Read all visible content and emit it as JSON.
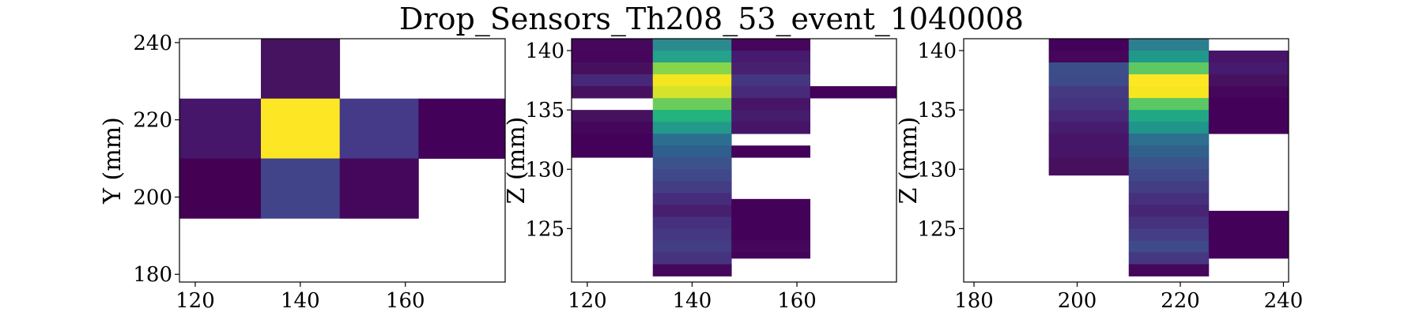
{
  "title": "Drop_Sensors_Th208_53_event_1040008",
  "chart_data": [
    {
      "type": "heatmap",
      "xlabel": "",
      "ylabel": "Y (mm)",
      "xlim": [
        117,
        179
      ],
      "ylim": [
        178,
        241
      ],
      "xticks": [
        120,
        140,
        160
      ],
      "yticks": [
        180,
        200,
        220,
        240
      ],
      "cells": [
        {
          "x0": 132.5,
          "x1": 147.5,
          "y0": 225.5,
          "y1": 241,
          "color": "#45135f"
        },
        {
          "x0": 117,
          "x1": 132.5,
          "y0": 210,
          "y1": 225.5,
          "color": "#45166a"
        },
        {
          "x0": 132.5,
          "x1": 147.5,
          "y0": 210,
          "y1": 225.5,
          "color": "#fde725"
        },
        {
          "x0": 147.5,
          "x1": 162.5,
          "y0": 210,
          "y1": 225.5,
          "color": "#453a88"
        },
        {
          "x0": 162.5,
          "x1": 179,
          "y0": 210,
          "y1": 225.5,
          "color": "#44015a"
        },
        {
          "x0": 117,
          "x1": 132.5,
          "y0": 194.5,
          "y1": 210,
          "color": "#440154"
        },
        {
          "x0": 132.5,
          "x1": 147.5,
          "y0": 194.5,
          "y1": 210,
          "color": "#414489"
        },
        {
          "x0": 147.5,
          "x1": 162.5,
          "y0": 194.5,
          "y1": 210,
          "color": "#45075b"
        }
      ]
    },
    {
      "type": "heatmap",
      "xlabel": "",
      "ylabel": "Z (mm)",
      "xlim": [
        117,
        179
      ],
      "ylim": [
        120.5,
        141
      ],
      "xticks": [
        120,
        140,
        160
      ],
      "yticks": [
        125,
        130,
        135,
        140
      ],
      "cells": [
        {
          "x0": 117,
          "x1": 132.5,
          "y0": 140,
          "y1": 141,
          "color": "#46085c"
        },
        {
          "x0": 132.5,
          "x1": 147.5,
          "y0": 140,
          "y1": 141,
          "color": "#2c8a8e"
        },
        {
          "x0": 147.5,
          "x1": 162.5,
          "y0": 140,
          "y1": 141,
          "color": "#45065b"
        },
        {
          "x0": 117,
          "x1": 132.5,
          "y0": 139,
          "y1": 140,
          "color": "#45065b"
        },
        {
          "x0": 132.5,
          "x1": 147.5,
          "y0": 139,
          "y1": 140,
          "color": "#25a28a"
        },
        {
          "x0": 147.5,
          "x1": 162.5,
          "y0": 139,
          "y1": 140,
          "color": "#461a6e"
        },
        {
          "x0": 117,
          "x1": 132.5,
          "y0": 138,
          "y1": 139,
          "color": "#46105f"
        },
        {
          "x0": 132.5,
          "x1": 147.5,
          "y0": 138,
          "y1": 139,
          "color": "#87d549"
        },
        {
          "x0": 147.5,
          "x1": 162.5,
          "y0": 138,
          "y1": 139,
          "color": "#47206f"
        },
        {
          "x0": 117,
          "x1": 132.5,
          "y0": 137,
          "y1": 138,
          "color": "#472878"
        },
        {
          "x0": 132.5,
          "x1": 147.5,
          "y0": 137,
          "y1": 138,
          "color": "#f4e61e"
        },
        {
          "x0": 147.5,
          "x1": 162.5,
          "y0": 137,
          "y1": 138,
          "color": "#453681"
        },
        {
          "x0": 117,
          "x1": 132.5,
          "y0": 136,
          "y1": 137,
          "color": "#46125f"
        },
        {
          "x0": 132.5,
          "x1": 147.5,
          "y0": 136,
          "y1": 137,
          "color": "#d6e32b"
        },
        {
          "x0": 147.5,
          "x1": 162.5,
          "y0": 136,
          "y1": 137,
          "color": "#472a7a"
        },
        {
          "x0": 162.5,
          "x1": 179,
          "y0": 136,
          "y1": 137,
          "color": "#44015a"
        },
        {
          "x0": 132.5,
          "x1": 147.5,
          "y0": 135,
          "y1": 136,
          "color": "#6acd5b"
        },
        {
          "x0": 147.5,
          "x1": 162.5,
          "y0": 135,
          "y1": 136,
          "color": "#461567"
        },
        {
          "x0": 117,
          "x1": 132.5,
          "y0": 134,
          "y1": 135,
          "color": "#46115f"
        },
        {
          "x0": 132.5,
          "x1": 147.5,
          "y0": 134,
          "y1": 135,
          "color": "#22b37e"
        },
        {
          "x0": 147.5,
          "x1": 162.5,
          "y0": 134,
          "y1": 135,
          "color": "#461c6f"
        },
        {
          "x0": 117,
          "x1": 132.5,
          "y0": 133,
          "y1": 134,
          "color": "#45075c"
        },
        {
          "x0": 132.5,
          "x1": 147.5,
          "y0": 133,
          "y1": 134,
          "color": "#239a89"
        },
        {
          "x0": 147.5,
          "x1": 162.5,
          "y0": 133,
          "y1": 134,
          "color": "#461567"
        },
        {
          "x0": 117,
          "x1": 132.5,
          "y0": 132,
          "y1": 133,
          "color": "#44015a"
        },
        {
          "x0": 132.5,
          "x1": 147.5,
          "y0": 132,
          "y1": 133,
          "color": "#2c6e8f"
        },
        {
          "x0": 117,
          "x1": 132.5,
          "y0": 131,
          "y1": 132,
          "color": "#44015a"
        },
        {
          "x0": 132.5,
          "x1": 147.5,
          "y0": 131,
          "y1": 132,
          "color": "#2e5f8e"
        },
        {
          "x0": 147.5,
          "x1": 162.5,
          "y0": 131,
          "y1": 132,
          "color": "#44015a"
        },
        {
          "x0": 132.5,
          "x1": 147.5,
          "y0": 130,
          "y1": 131,
          "color": "#3b528b"
        },
        {
          "x0": 132.5,
          "x1": 147.5,
          "y0": 129,
          "y1": 130,
          "color": "#3f4889"
        },
        {
          "x0": 132.5,
          "x1": 147.5,
          "y0": 128,
          "y1": 129,
          "color": "#433d84"
        },
        {
          "x0": 132.5,
          "x1": 147.5,
          "y0": 127,
          "y1": 128,
          "color": "#462d7c"
        },
        {
          "x0": 132.5,
          "x1": 147.5,
          "y0": 126,
          "y1": 127,
          "color": "#471f6f"
        },
        {
          "x0": 147.5,
          "x1": 162.5,
          "y0": 126,
          "y1": 127.5,
          "color": "#44015a"
        },
        {
          "x0": 132.5,
          "x1": 147.5,
          "y0": 125,
          "y1": 126,
          "color": "#46307e"
        },
        {
          "x0": 147.5,
          "x1": 162.5,
          "y0": 125,
          "y1": 126,
          "color": "#44015a"
        },
        {
          "x0": 132.5,
          "x1": 147.5,
          "y0": 124,
          "y1": 125,
          "color": "#453781"
        },
        {
          "x0": 147.5,
          "x1": 162.5,
          "y0": 124,
          "y1": 125,
          "color": "#44015a"
        },
        {
          "x0": 132.5,
          "x1": 147.5,
          "y0": 123,
          "y1": 124,
          "color": "#433d84"
        },
        {
          "x0": 147.5,
          "x1": 162.5,
          "y0": 123,
          "y1": 124,
          "color": "#45075c"
        },
        {
          "x0": 132.5,
          "x1": 147.5,
          "y0": 122,
          "y1": 123,
          "color": "#46337f"
        },
        {
          "x0": 147.5,
          "x1": 162.5,
          "y0": 122.5,
          "y1": 123,
          "color": "#44015a"
        },
        {
          "x0": 132.5,
          "x1": 147.5,
          "y0": 121,
          "y1": 122,
          "color": "#45075c"
        }
      ]
    },
    {
      "type": "heatmap",
      "xlabel": "",
      "ylabel": "Z (mm)",
      "xlim": [
        178,
        241
      ],
      "ylim": [
        120.5,
        141
      ],
      "xticks": [
        180,
        200,
        220,
        240
      ],
      "yticks": [
        125,
        130,
        135,
        140
      ],
      "cells": [
        {
          "x0": 194.5,
          "x1": 210,
          "y0": 140,
          "y1": 141,
          "color": "#44015a"
        },
        {
          "x0": 210,
          "x1": 225.5,
          "y0": 140,
          "y1": 141,
          "color": "#2c7f8e"
        },
        {
          "x0": 194.5,
          "x1": 210,
          "y0": 139,
          "y1": 140,
          "color": "#45065b"
        },
        {
          "x0": 210,
          "x1": 225.5,
          "y0": 139,
          "y1": 140,
          "color": "#21998a"
        },
        {
          "x0": 225.5,
          "x1": 241,
          "y0": 139,
          "y1": 140,
          "color": "#461567"
        },
        {
          "x0": 194.5,
          "x1": 210,
          "y0": 138,
          "y1": 139,
          "color": "#3b4e8a"
        },
        {
          "x0": 210,
          "x1": 225.5,
          "y0": 138,
          "y1": 139,
          "color": "#5ec962"
        },
        {
          "x0": 225.5,
          "x1": 241,
          "y0": 138,
          "y1": 139,
          "color": "#461a6e"
        },
        {
          "x0": 194.5,
          "x1": 210,
          "y0": 137,
          "y1": 138,
          "color": "#3e4a89"
        },
        {
          "x0": 210,
          "x1": 225.5,
          "y0": 137,
          "y1": 138,
          "color": "#fde725"
        },
        {
          "x0": 225.5,
          "x1": 241,
          "y0": 137,
          "y1": 138,
          "color": "#46125f"
        },
        {
          "x0": 194.5,
          "x1": 210,
          "y0": 136,
          "y1": 137,
          "color": "#453982"
        },
        {
          "x0": 210,
          "x1": 225.5,
          "y0": 136,
          "y1": 137,
          "color": "#f6e620"
        },
        {
          "x0": 225.5,
          "x1": 241,
          "y0": 136,
          "y1": 137,
          "color": "#45065b"
        },
        {
          "x0": 194.5,
          "x1": 210,
          "y0": 135,
          "y1": 136,
          "color": "#46337f"
        },
        {
          "x0": 210,
          "x1": 225.5,
          "y0": 135,
          "y1": 136,
          "color": "#5ac864"
        },
        {
          "x0": 225.5,
          "x1": 241,
          "y0": 135,
          "y1": 136,
          "color": "#44015a"
        },
        {
          "x0": 194.5,
          "x1": 210,
          "y0": 134,
          "y1": 135,
          "color": "#472878"
        },
        {
          "x0": 210,
          "x1": 225.5,
          "y0": 134,
          "y1": 135,
          "color": "#22a785"
        },
        {
          "x0": 225.5,
          "x1": 241,
          "y0": 134,
          "y1": 135,
          "color": "#44015a"
        },
        {
          "x0": 194.5,
          "x1": 210,
          "y0": 133,
          "y1": 134,
          "color": "#461c6f"
        },
        {
          "x0": 210,
          "x1": 225.5,
          "y0": 133,
          "y1": 134,
          "color": "#1f958b"
        },
        {
          "x0": 225.5,
          "x1": 241,
          "y0": 133,
          "y1": 134,
          "color": "#44015a"
        },
        {
          "x0": 194.5,
          "x1": 210,
          "y0": 132,
          "y1": 133,
          "color": "#461567"
        },
        {
          "x0": 210,
          "x1": 225.5,
          "y0": 132,
          "y1": 133,
          "color": "#2e6e8e"
        },
        {
          "x0": 194.5,
          "x1": 210,
          "y0": 131,
          "y1": 132,
          "color": "#461567"
        },
        {
          "x0": 210,
          "x1": 225.5,
          "y0": 131,
          "y1": 132,
          "color": "#31608d"
        },
        {
          "x0": 194.5,
          "x1": 210,
          "y0": 130,
          "y1": 131,
          "color": "#46105f"
        },
        {
          "x0": 210,
          "x1": 225.5,
          "y0": 130,
          "y1": 131,
          "color": "#3b528b"
        },
        {
          "x0": 194.5,
          "x1": 210,
          "y0": 129.5,
          "y1": 130,
          "color": "#46105f"
        },
        {
          "x0": 210,
          "x1": 225.5,
          "y0": 129,
          "y1": 130,
          "color": "#3f4889"
        },
        {
          "x0": 210,
          "x1": 225.5,
          "y0": 128,
          "y1": 129,
          "color": "#433d84"
        },
        {
          "x0": 210,
          "x1": 225.5,
          "y0": 127,
          "y1": 128,
          "color": "#46307e"
        },
        {
          "x0": 210,
          "x1": 225.5,
          "y0": 126,
          "y1": 127,
          "color": "#472575"
        },
        {
          "x0": 225.5,
          "x1": 241,
          "y0": 126,
          "y1": 126.5,
          "color": "#44015a"
        },
        {
          "x0": 210,
          "x1": 225.5,
          "y0": 125,
          "y1": 126,
          "color": "#46337f"
        },
        {
          "x0": 225.5,
          "x1": 241,
          "y0": 125,
          "y1": 126,
          "color": "#44015a"
        },
        {
          "x0": 210,
          "x1": 225.5,
          "y0": 124,
          "y1": 125,
          "color": "#433e85"
        },
        {
          "x0": 225.5,
          "x1": 241,
          "y0": 124,
          "y1": 125,
          "color": "#44015a"
        },
        {
          "x0": 210,
          "x1": 225.5,
          "y0": 123,
          "y1": 124,
          "color": "#3e4a89"
        },
        {
          "x0": 225.5,
          "x1": 241,
          "y0": 123,
          "y1": 124,
          "color": "#44015a"
        },
        {
          "x0": 225.5,
          "x1": 241,
          "y0": 122.5,
          "y1": 123,
          "color": "#44015a"
        },
        {
          "x0": 210,
          "x1": 225.5,
          "y0": 122,
          "y1": 123,
          "color": "#453781"
        },
        {
          "x0": 210,
          "x1": 225.5,
          "y0": 121,
          "y1": 122,
          "color": "#45075c"
        }
      ]
    }
  ]
}
